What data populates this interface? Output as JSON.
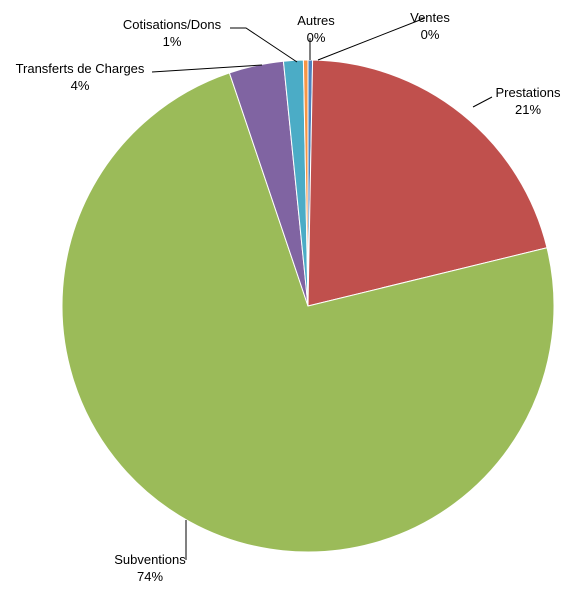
{
  "chart_data": {
    "type": "pie",
    "title": "",
    "slices": [
      {
        "label": "Ventes",
        "value": 0.3,
        "display": "0%",
        "color": "#4F81BD"
      },
      {
        "label": "Prestations",
        "value": 21,
        "display": "21%",
        "color": "#C0504D"
      },
      {
        "label": "Subventions",
        "value": 74,
        "display": "74%",
        "color": "#9BBB59"
      },
      {
        "label": "Transferts de Charges",
        "value": 3.6,
        "display": "4%",
        "color": "#8064A2"
      },
      {
        "label": "Cotisations/Dons",
        "value": 1.3,
        "display": "1%",
        "color": "#4BACC6"
      },
      {
        "label": "Autres",
        "value": 0.3,
        "display": "0%",
        "color": "#F79646"
      }
    ],
    "legend": "none",
    "start_angle_deg": 0,
    "direction": "clockwise"
  }
}
